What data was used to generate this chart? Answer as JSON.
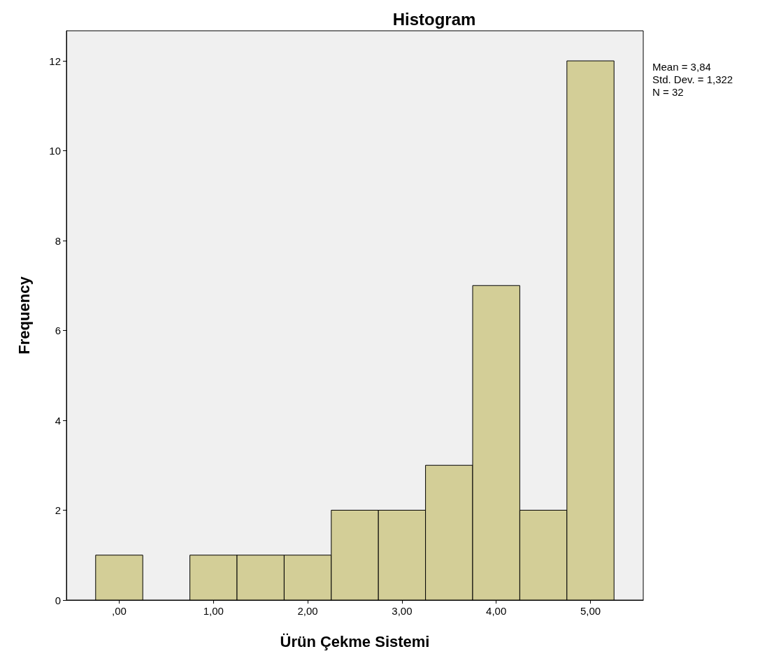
{
  "chart_data": {
    "type": "histogram",
    "title": "Histogram",
    "xlabel": "Ürün Çekme Sistemi",
    "ylabel": "Frequency",
    "bins": [
      -0.25,
      0.25,
      0.75,
      1.25,
      1.75,
      2.25,
      2.75,
      3.25,
      3.75,
      4.25,
      4.75,
      5.25
    ],
    "values": [
      1,
      0,
      1,
      1,
      1,
      2,
      2,
      3,
      7,
      2,
      12
    ],
    "color": "#d3ce97",
    "xlim": [
      -0.56,
      5.56
    ],
    "xticks": [
      {
        "value": 0,
        "label": ",00"
      },
      {
        "value": 1,
        "label": "1,00"
      },
      {
        "value": 2,
        "label": "2,00"
      },
      {
        "value": 3,
        "label": "3,00"
      },
      {
        "value": 4,
        "label": "4,00"
      },
      {
        "value": 5,
        "label": "5,00"
      }
    ],
    "ylim": [
      0,
      12.67
    ],
    "yticks": [
      0,
      2,
      4,
      6,
      8,
      10,
      12
    ],
    "grid": false,
    "annotations": [
      "Mean = 3,84",
      "Std. Dev. = 1,322",
      "N = 32"
    ]
  }
}
